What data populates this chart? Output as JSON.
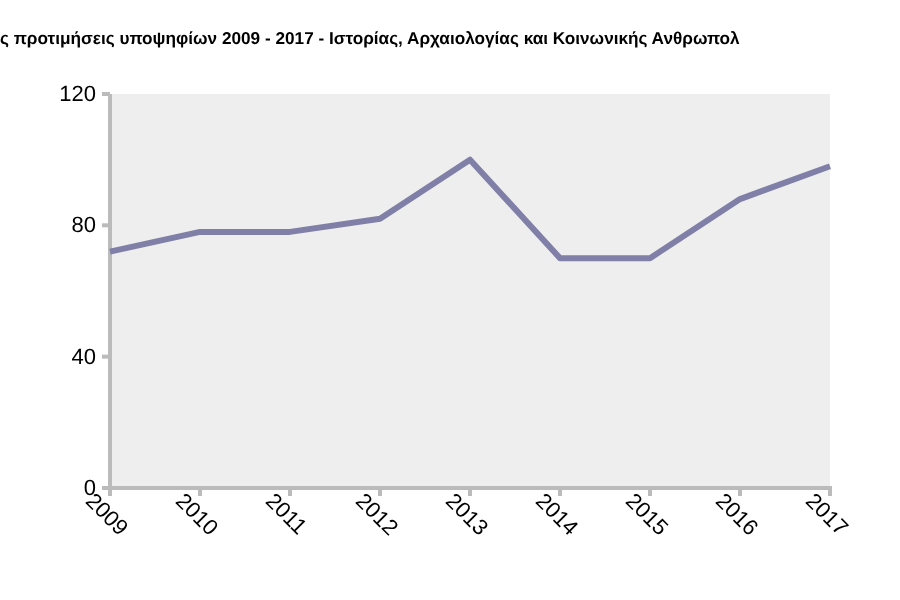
{
  "chart_data": {
    "type": "line",
    "title": "ς προτιμήσεις υποψηφίων 2009 - 2017 - Ιστορίας, Αρχαιολογίας και Κοινωνικής Ανθρωπολ",
    "categories": [
      "2009",
      "2010",
      "2011",
      "2012",
      "2013",
      "2014",
      "2015",
      "2016",
      "2017"
    ],
    "series": [
      {
        "color": "#7f7fa8",
        "values": [
          72,
          78,
          78,
          82,
          100,
          70,
          70,
          88,
          98
        ]
      }
    ],
    "ylim": [
      0,
      120
    ],
    "yticks": [
      0,
      40,
      80,
      120
    ],
    "grid": false,
    "marker": "none",
    "line_style": "solid"
  }
}
